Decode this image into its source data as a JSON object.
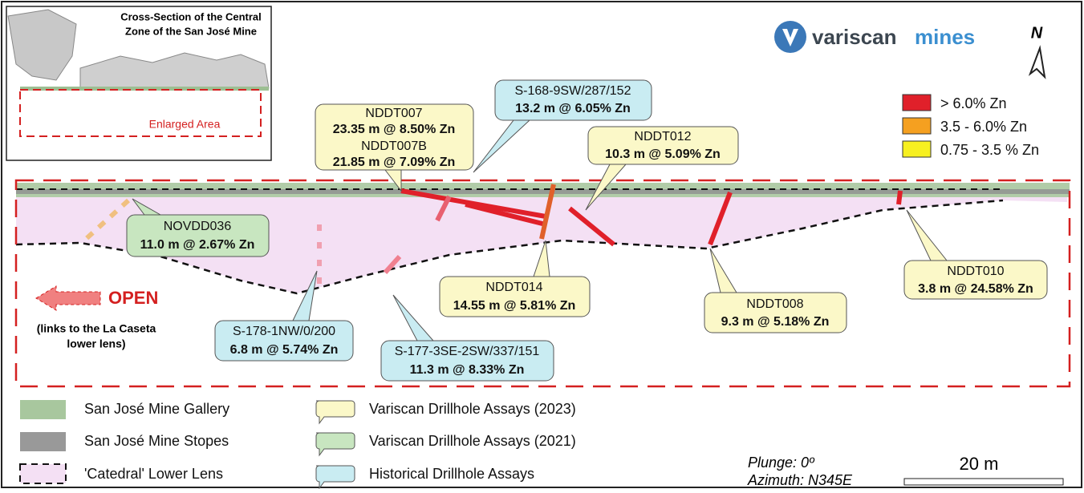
{
  "inset": {
    "title_line_1": "Cross-Section of the Central",
    "title_line_2": "Zone of the San José Mine",
    "area_label": "Enlarged Area"
  },
  "logo": {
    "word_1": "variscan",
    "word_2": "mines"
  },
  "north": "N",
  "grade_legend": [
    "> 6.0% Zn",
    "3.5 - 6.0% Zn",
    "0.75 - 3.5 % Zn"
  ],
  "callouts": [
    {
      "hole": "NDDT007",
      "assay": "23.35 m @ 8.50% Zn",
      "hole_2": "NDDT007B",
      "assay_2": "21.85 m @ 7.09% Zn"
    },
    {
      "hole": "S-168-9SW/287/152",
      "assay": "13.2 m @ 6.05% Zn"
    },
    {
      "hole": "NDDT012",
      "assay": "10.3 m @ 5.09% Zn"
    },
    {
      "hole": "NOVDD036",
      "assay": "11.0 m @ 2.67% Zn"
    },
    {
      "hole": "NDDT014",
      "assay": "14.55 m @ 5.81% Zn"
    },
    {
      "hole": "NDDT008",
      "assay": "9.3 m @ 5.18% Zn"
    },
    {
      "hole": "NDDT010",
      "assay": "3.8 m @ 24.58% Zn"
    },
    {
      "hole": "S-178-1NW/0/200",
      "assay": "6.8 m @ 5.74% Zn"
    },
    {
      "hole": "S-177-3SE-2SW/337/151",
      "assay": "11.3 m @ 8.33% Zn"
    }
  ],
  "open": {
    "label": "OPEN",
    "note_line_1": "(links to the La Caseta",
    "note_line_2": "lower lens)"
  },
  "legend": [
    "San José Mine Gallery",
    "San José Mine Stopes",
    "'Catedral' Lower Lens",
    "Variscan Drillhole Assays (2023)",
    "Variscan Drillhole Assays (2021)",
    "Historical Drillhole Assays"
  ],
  "orientation": {
    "plunge": "Plunge: 0º",
    "azimuth": "Azimuth: N345E"
  },
  "scale": "20 m"
}
